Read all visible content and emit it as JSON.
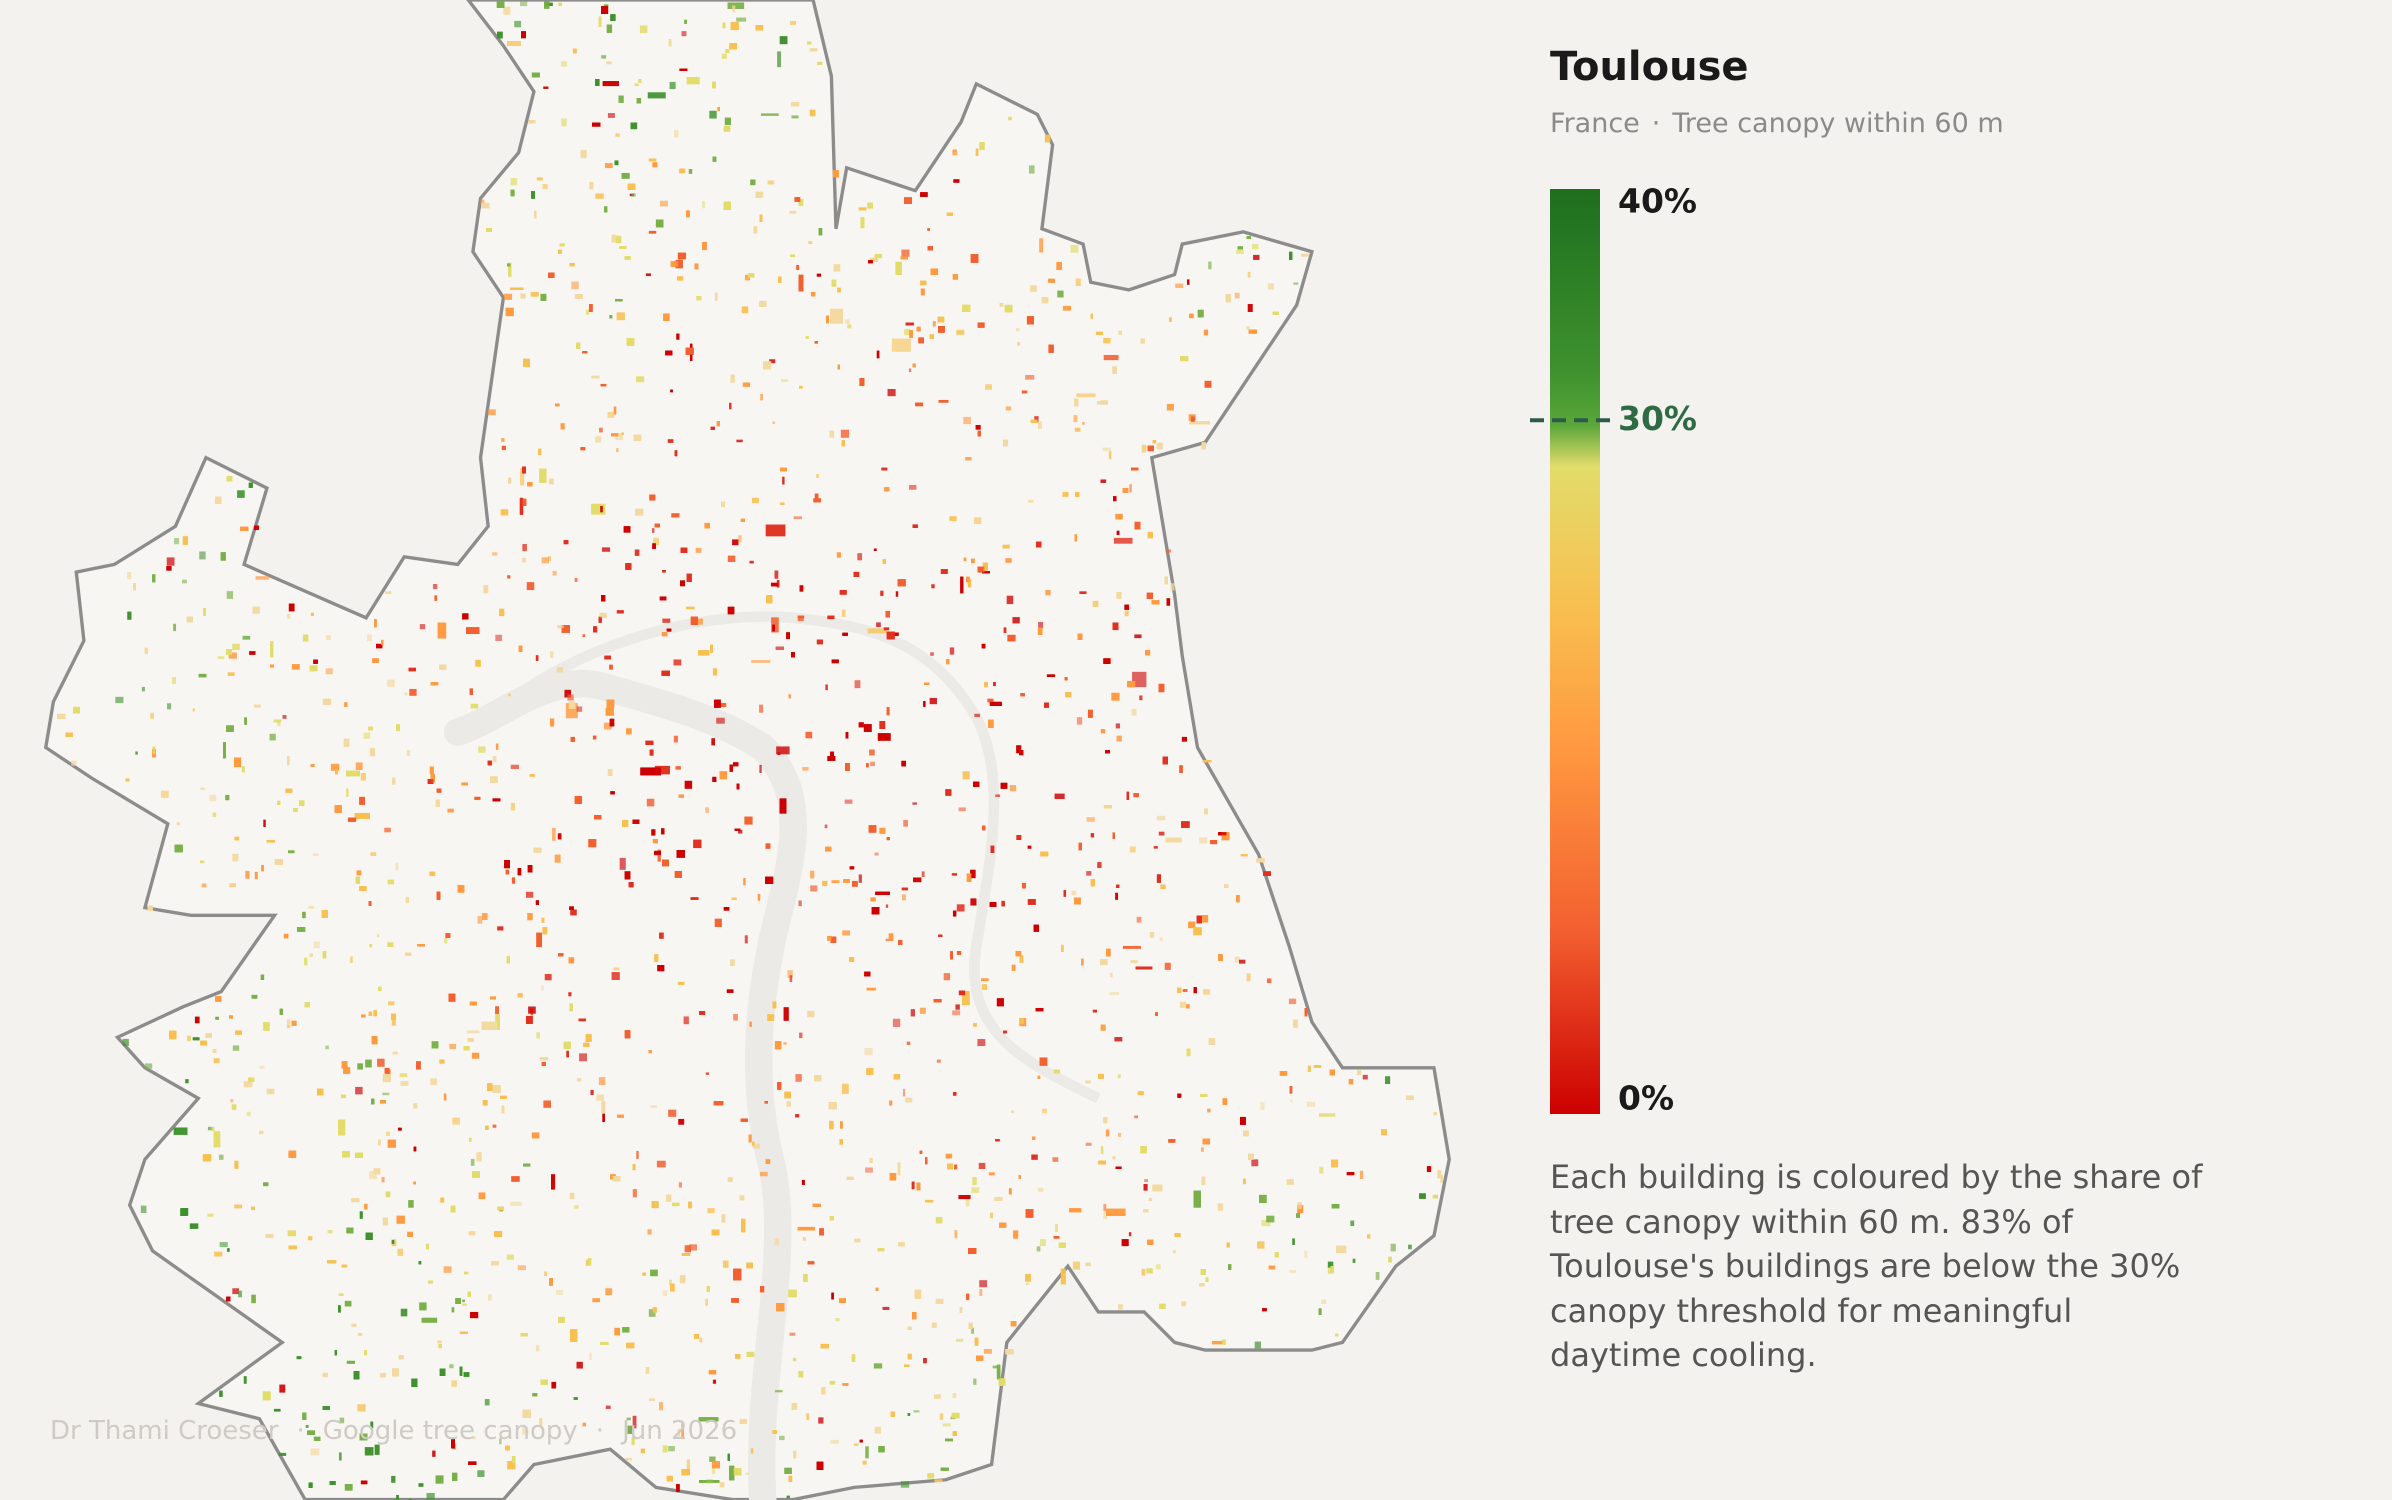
{
  "header": {
    "title": "Toulouse",
    "country": "France",
    "separator": "·",
    "subtitle": "Tree canopy within 60 m"
  },
  "legend": {
    "ticks": [
      {
        "value": 40,
        "label": "40%"
      },
      {
        "value": 30,
        "label": "30%"
      },
      {
        "value": 0,
        "label": "0%"
      }
    ],
    "range": [
      0,
      40
    ],
    "threshold": 30
  },
  "description": "Each building is coloured by the share of tree canopy within 60 m. 83% of Toulouse's buildings are below the 30% canopy threshold for meaningful daytime cooling.",
  "credits": {
    "author": "Dr Thami Croeser",
    "source": "Google tree canopy",
    "date": "Jun 2026",
    "separator": "·"
  }
}
